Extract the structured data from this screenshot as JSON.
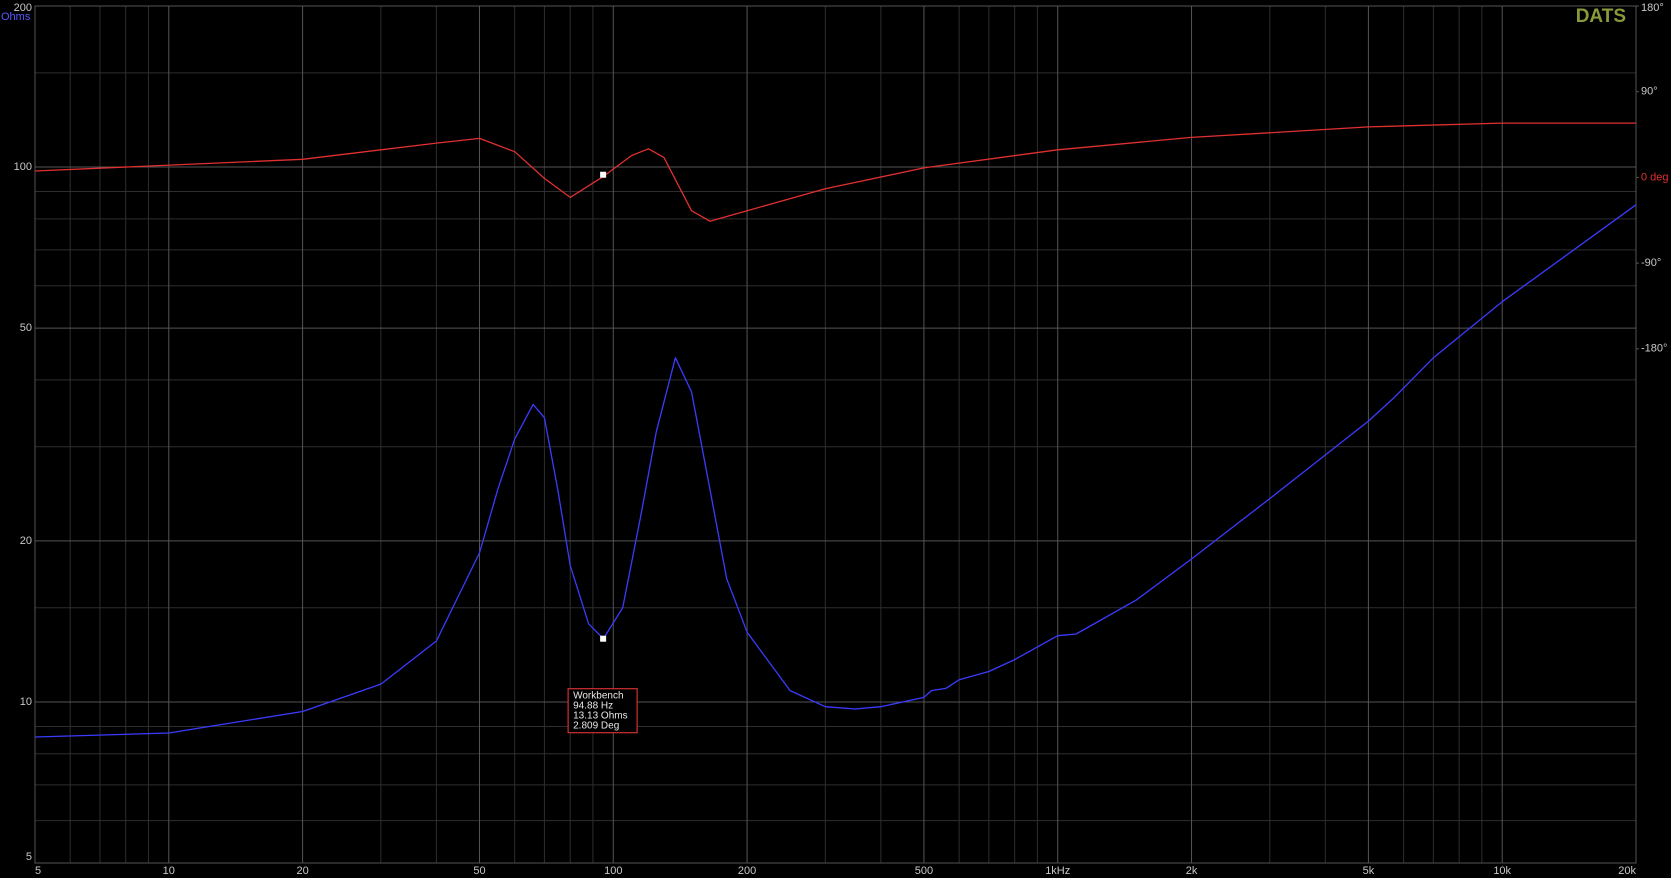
{
  "chart_data": {
    "type": "line",
    "brand": "DATS",
    "ylabel": "Ohms",
    "xscale": "log",
    "yscale": "log",
    "grid": true,
    "xlim": [
      5,
      20000
    ],
    "xticks": [
      5,
      10,
      20,
      50,
      100,
      200,
      500,
      {
        "value": 1000,
        "label": "1kHz"
      },
      {
        "value": 2000,
        "label": "2k"
      },
      {
        "value": 5000,
        "label": "5k"
      },
      {
        "value": 10000,
        "label": "10k"
      },
      {
        "value": 20000,
        "label": "20k"
      }
    ],
    "x_minor_ticks": [
      6,
      7,
      8,
      9,
      30,
      40,
      60,
      70,
      80,
      90,
      300,
      400,
      600,
      700,
      800,
      900,
      3000,
      4000,
      6000,
      7000,
      8000,
      9000
    ],
    "ylim": [
      5,
      200
    ],
    "yticks": [
      5,
      10,
      20,
      50,
      100,
      200
    ],
    "y_minor_ticks": [
      6,
      7,
      8,
      9,
      15,
      30,
      40,
      60,
      70,
      80,
      90,
      150
    ],
    "y2lim": [
      -720,
      180
    ],
    "y2ticks": [
      {
        "value": 180,
        "label": "180°"
      },
      {
        "value": 90,
        "label": "90°"
      },
      {
        "value": 0,
        "label": "0 deg"
      },
      {
        "value": -90,
        "label": "-90°"
      },
      {
        "value": -180,
        "label": "-180°"
      }
    ],
    "series": [
      {
        "color": "#3b3bff",
        "x": [
          5,
          10,
          20,
          30,
          40,
          50,
          55,
          60,
          66,
          70,
          75,
          80,
          88,
          95,
          105,
          115,
          125,
          138,
          150,
          165,
          180,
          200,
          250,
          300,
          350,
          400,
          500,
          520,
          560,
          600,
          700,
          800,
          1000,
          1100,
          1500,
          2000,
          3000,
          5000,
          5700,
          7000,
          10000,
          20000
        ],
        "values": [
          8.6,
          8.75,
          9.6,
          10.8,
          13,
          19,
          25,
          31,
          36,
          34,
          25,
          18,
          14,
          13.13,
          15,
          22,
          32,
          44,
          38,
          25,
          17,
          13.5,
          10.5,
          9.8,
          9.7,
          9.8,
          10.2,
          10.5,
          10.6,
          11.0,
          11.4,
          12.0,
          13.3,
          13.4,
          15.5,
          18.5,
          24,
          33.5,
          37,
          44,
          56,
          85
        ]
      },
      {
        "color": "#e03030",
        "axis": "y2",
        "x": [
          5,
          20,
          40,
          50,
          60,
          70,
          80,
          95,
          110,
          120,
          130,
          150,
          165,
          200,
          300,
          500,
          1000,
          2000,
          5000,
          10000,
          20000
        ],
        "values": [
          6.7,
          19,
          36,
          41,
          27,
          -1,
          -21,
          1,
          23,
          30,
          21,
          -35,
          -46,
          -35,
          -12,
          10,
          29,
          42,
          53,
          57,
          57
        ]
      }
    ],
    "cursor": {
      "title": "Workbench",
      "x": 94.88,
      "y": 13.13,
      "y2": 2.809,
      "labels": [
        "94.88 Hz",
        "13.13 Ohms",
        "2.809 Deg"
      ]
    }
  }
}
